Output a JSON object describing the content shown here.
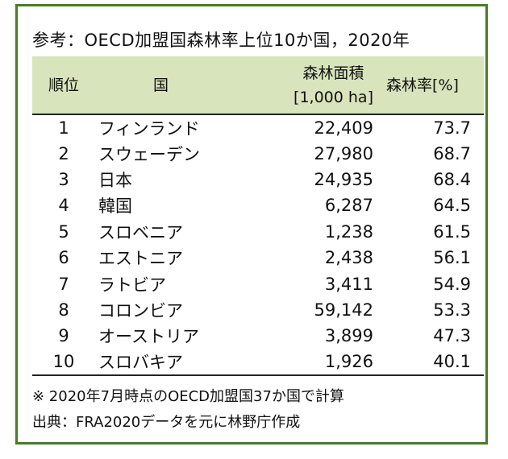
{
  "title": "参考：OECD加盟国森林率上位10か国，2020年",
  "table": {
    "headers": {
      "rank": "順位",
      "country": "国",
      "area_line1": "森林面積",
      "area_line2": "[1,000 ha]",
      "rate": "森林率[%]"
    },
    "rows": [
      {
        "rank": "1",
        "country": "フィンランド",
        "area": "22,409",
        "rate": "73.7"
      },
      {
        "rank": "2",
        "country": "スウェーデン",
        "area": "27,980",
        "rate": "68.7"
      },
      {
        "rank": "3",
        "country": "日本",
        "area": "24,935",
        "rate": "68.4"
      },
      {
        "rank": "4",
        "country": "韓国",
        "area": "6,287",
        "rate": "64.5"
      },
      {
        "rank": "5",
        "country": "スロベニア",
        "area": "1,238",
        "rate": "61.5"
      },
      {
        "rank": "6",
        "country": "エストニア",
        "area": "2,438",
        "rate": "56.1"
      },
      {
        "rank": "7",
        "country": "ラトビア",
        "area": "3,411",
        "rate": "54.9"
      },
      {
        "rank": "8",
        "country": "コロンビア",
        "area": "59,142",
        "rate": "53.3"
      },
      {
        "rank": "9",
        "country": "オーストリア",
        "area": "3,899",
        "rate": "47.3"
      },
      {
        "rank": "10",
        "country": "スロバキア",
        "area": "1,926",
        "rate": "40.1"
      }
    ]
  },
  "notes": {
    "note": "※ 2020年7月時点のOECD加盟国37か国で計算",
    "source": "出典：FRA2020データを元に林野庁作成"
  },
  "colors": {
    "frame_border": "#4a7a2a",
    "header_fill": "#d8e4bc"
  }
}
